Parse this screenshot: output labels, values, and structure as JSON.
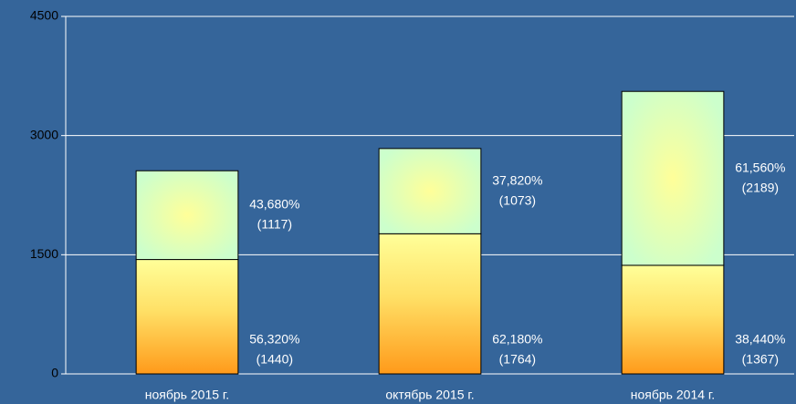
{
  "chart_data": {
    "type": "stacked-bar",
    "categories": [
      "ноябрь 2015 г.",
      "октябрь 2015 г.",
      "ноябрь 2014 г."
    ],
    "series": [
      {
        "color": "#ff9a1a",
        "values": [
          1440,
          1764,
          1367
        ],
        "value_labels": [
          "(1440)",
          "(1764)",
          "(1367)"
        ],
        "percent_labels": [
          "56,320%",
          "62,180%",
          "38,440%"
        ]
      },
      {
        "color": "#ccffcc",
        "values": [
          1117,
          1073,
          2189
        ],
        "value_labels": [
          "(1117)",
          "(1073)",
          "(2189)"
        ],
        "percent_labels": [
          "43,680%",
          "37,820%",
          "61,560%"
        ]
      }
    ],
    "ylim": [
      0,
      4500
    ],
    "yticks": [
      0,
      1500,
      3000,
      4500
    ],
    "grid": true
  }
}
